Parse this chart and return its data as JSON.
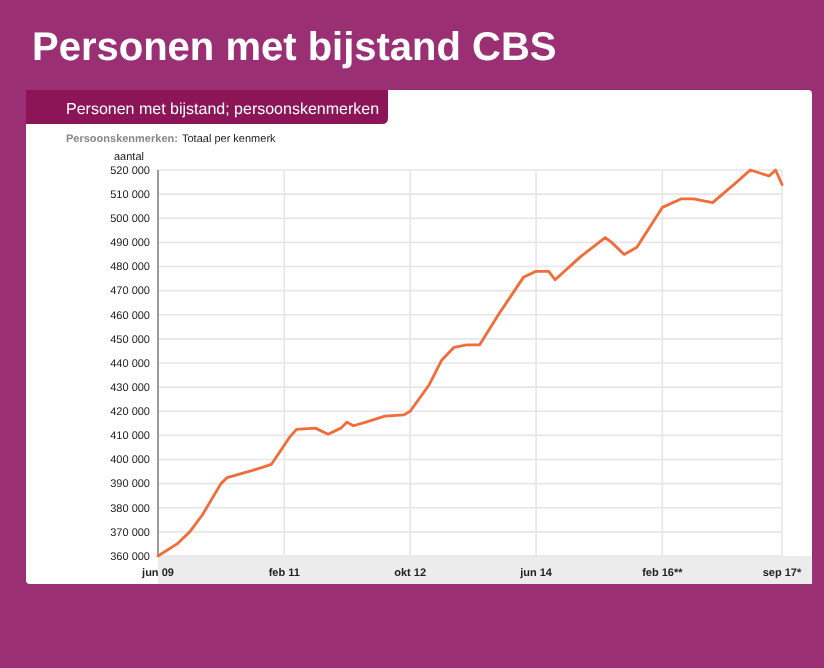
{
  "chart_data": {
    "type": "line",
    "title": "Personen met bijstand CBS",
    "subtitle": "Personen met bijstand; persoonskenmerken",
    "annotations": [
      "Persoonskenmerken:",
      "Totaal per kenmerk"
    ],
    "ylabel": "aantal",
    "x": [
      "2009-06",
      "2009-09",
      "2009-11",
      "2010-01",
      "2010-04",
      "2010-05",
      "2010-09",
      "2010-12",
      "2011-03",
      "2011-04",
      "2011-07",
      "2011-09",
      "2011-11",
      "2011-12",
      "2012-01",
      "2012-03",
      "2012-06",
      "2012-09",
      "2012-10",
      "2013-01",
      "2013-03",
      "2013-05",
      "2013-07",
      "2013-09",
      "2013-12",
      "2014-04",
      "2014-06",
      "2014-08",
      "2014-09",
      "2015-01",
      "2015-05",
      "2015-06",
      "2015-08",
      "2015-10",
      "2016-02",
      "2016-05",
      "2016-07",
      "2016-10",
      "2017-02",
      "2017-04",
      "2017-07",
      "2017-08",
      "2017-09"
    ],
    "series": [
      {
        "color": "#f26c3a",
        "values": [
          360000,
          365000,
          370000,
          377000,
          390000,
          392500,
          395500,
          398000,
          409500,
          412500,
          413000,
          410500,
          413000,
          415500,
          414000,
          415500,
          418000,
          418500,
          420000,
          431000,
          441000,
          446500,
          447500,
          447500,
          460000,
          475500,
          478000,
          478000,
          474500,
          484000,
          492000,
          490000,
          485000,
          488000,
          504500,
          508000,
          508000,
          506500,
          515500,
          520000,
          517500,
          520000,
          514000
        ]
      }
    ],
    "xlim": [
      "2009-06",
      "2017-09"
    ],
    "xticks": [
      {
        "value": "2009-06",
        "label": "jun 09"
      },
      {
        "value": "2011-02",
        "label": "feb 11"
      },
      {
        "value": "2012-10",
        "label": "okt 12"
      },
      {
        "value": "2014-06",
        "label": "jun 14"
      },
      {
        "value": "2016-02",
        "label": "feb 16**"
      },
      {
        "value": "2017-09",
        "label": "sep 17*"
      }
    ],
    "ylim": [
      360000,
      520000
    ],
    "yticks": [
      {
        "value": 360000,
        "label": "360 000"
      },
      {
        "value": 370000,
        "label": "370 000"
      },
      {
        "value": 380000,
        "label": "380 000"
      },
      {
        "value": 390000,
        "label": "390 000"
      },
      {
        "value": 400000,
        "label": "400 000"
      },
      {
        "value": 410000,
        "label": "410 000"
      },
      {
        "value": 420000,
        "label": "420 000"
      },
      {
        "value": 430000,
        "label": "430 000"
      },
      {
        "value": 440000,
        "label": "440 000"
      },
      {
        "value": 450000,
        "label": "450 000"
      },
      {
        "value": 460000,
        "label": "460 000"
      },
      {
        "value": 470000,
        "label": "470 000"
      },
      {
        "value": 480000,
        "label": "480 000"
      },
      {
        "value": 490000,
        "label": "490 000"
      },
      {
        "value": 500000,
        "label": "500 000"
      },
      {
        "value": 510000,
        "label": "510 000"
      },
      {
        "value": 520000,
        "label": "520 000"
      }
    ],
    "grid": true,
    "marker": "none",
    "line_style": "solid"
  }
}
